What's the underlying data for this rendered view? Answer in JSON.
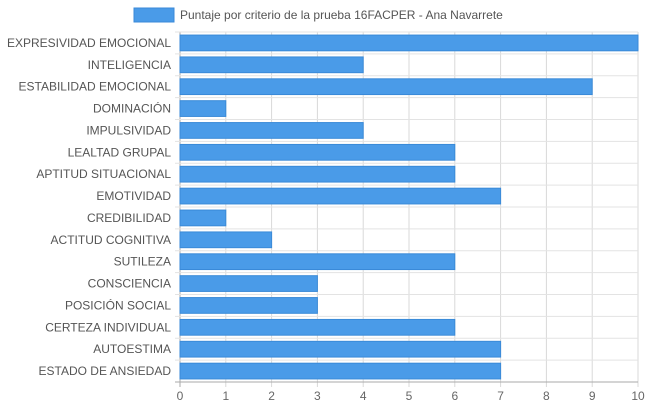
{
  "chart_data": {
    "type": "bar",
    "orientation": "horizontal",
    "title": "",
    "xlabel": "",
    "ylabel": "",
    "xlim": [
      0,
      10
    ],
    "x_ticks": [
      0,
      1,
      2,
      3,
      4,
      5,
      6,
      7,
      8,
      9,
      10
    ],
    "grid": true,
    "legend_position": "top",
    "series_color": "#4a9be8",
    "series_border": "#3a8ad8",
    "categories": [
      "EXPRESIVIDAD EMOCIONAL",
      "INTELIGENCIA",
      "ESTABILIDAD EMOCIONAL",
      "DOMINACIÓN",
      "IMPULSIVIDAD",
      "LEALTAD GRUPAL",
      "APTITUD SITUACIONAL",
      "EMOTIVIDAD",
      "CREDIBILIDAD",
      "ACTITUD COGNITIVA",
      "SUTILEZA",
      "CONSCIENCIA",
      "POSICIÓN SOCIAL",
      "CERTEZA INDIVIDUAL",
      "AUTOESTIMA",
      "ESTADO DE ANSIEDAD"
    ],
    "series": [
      {
        "name": "Puntaje por criterio de la prueba 16FACPER - Ana Navarrete",
        "values": [
          10,
          4,
          9,
          1,
          4,
          6,
          6,
          7,
          1,
          2,
          6,
          3,
          3,
          6,
          7,
          7
        ]
      }
    ]
  }
}
